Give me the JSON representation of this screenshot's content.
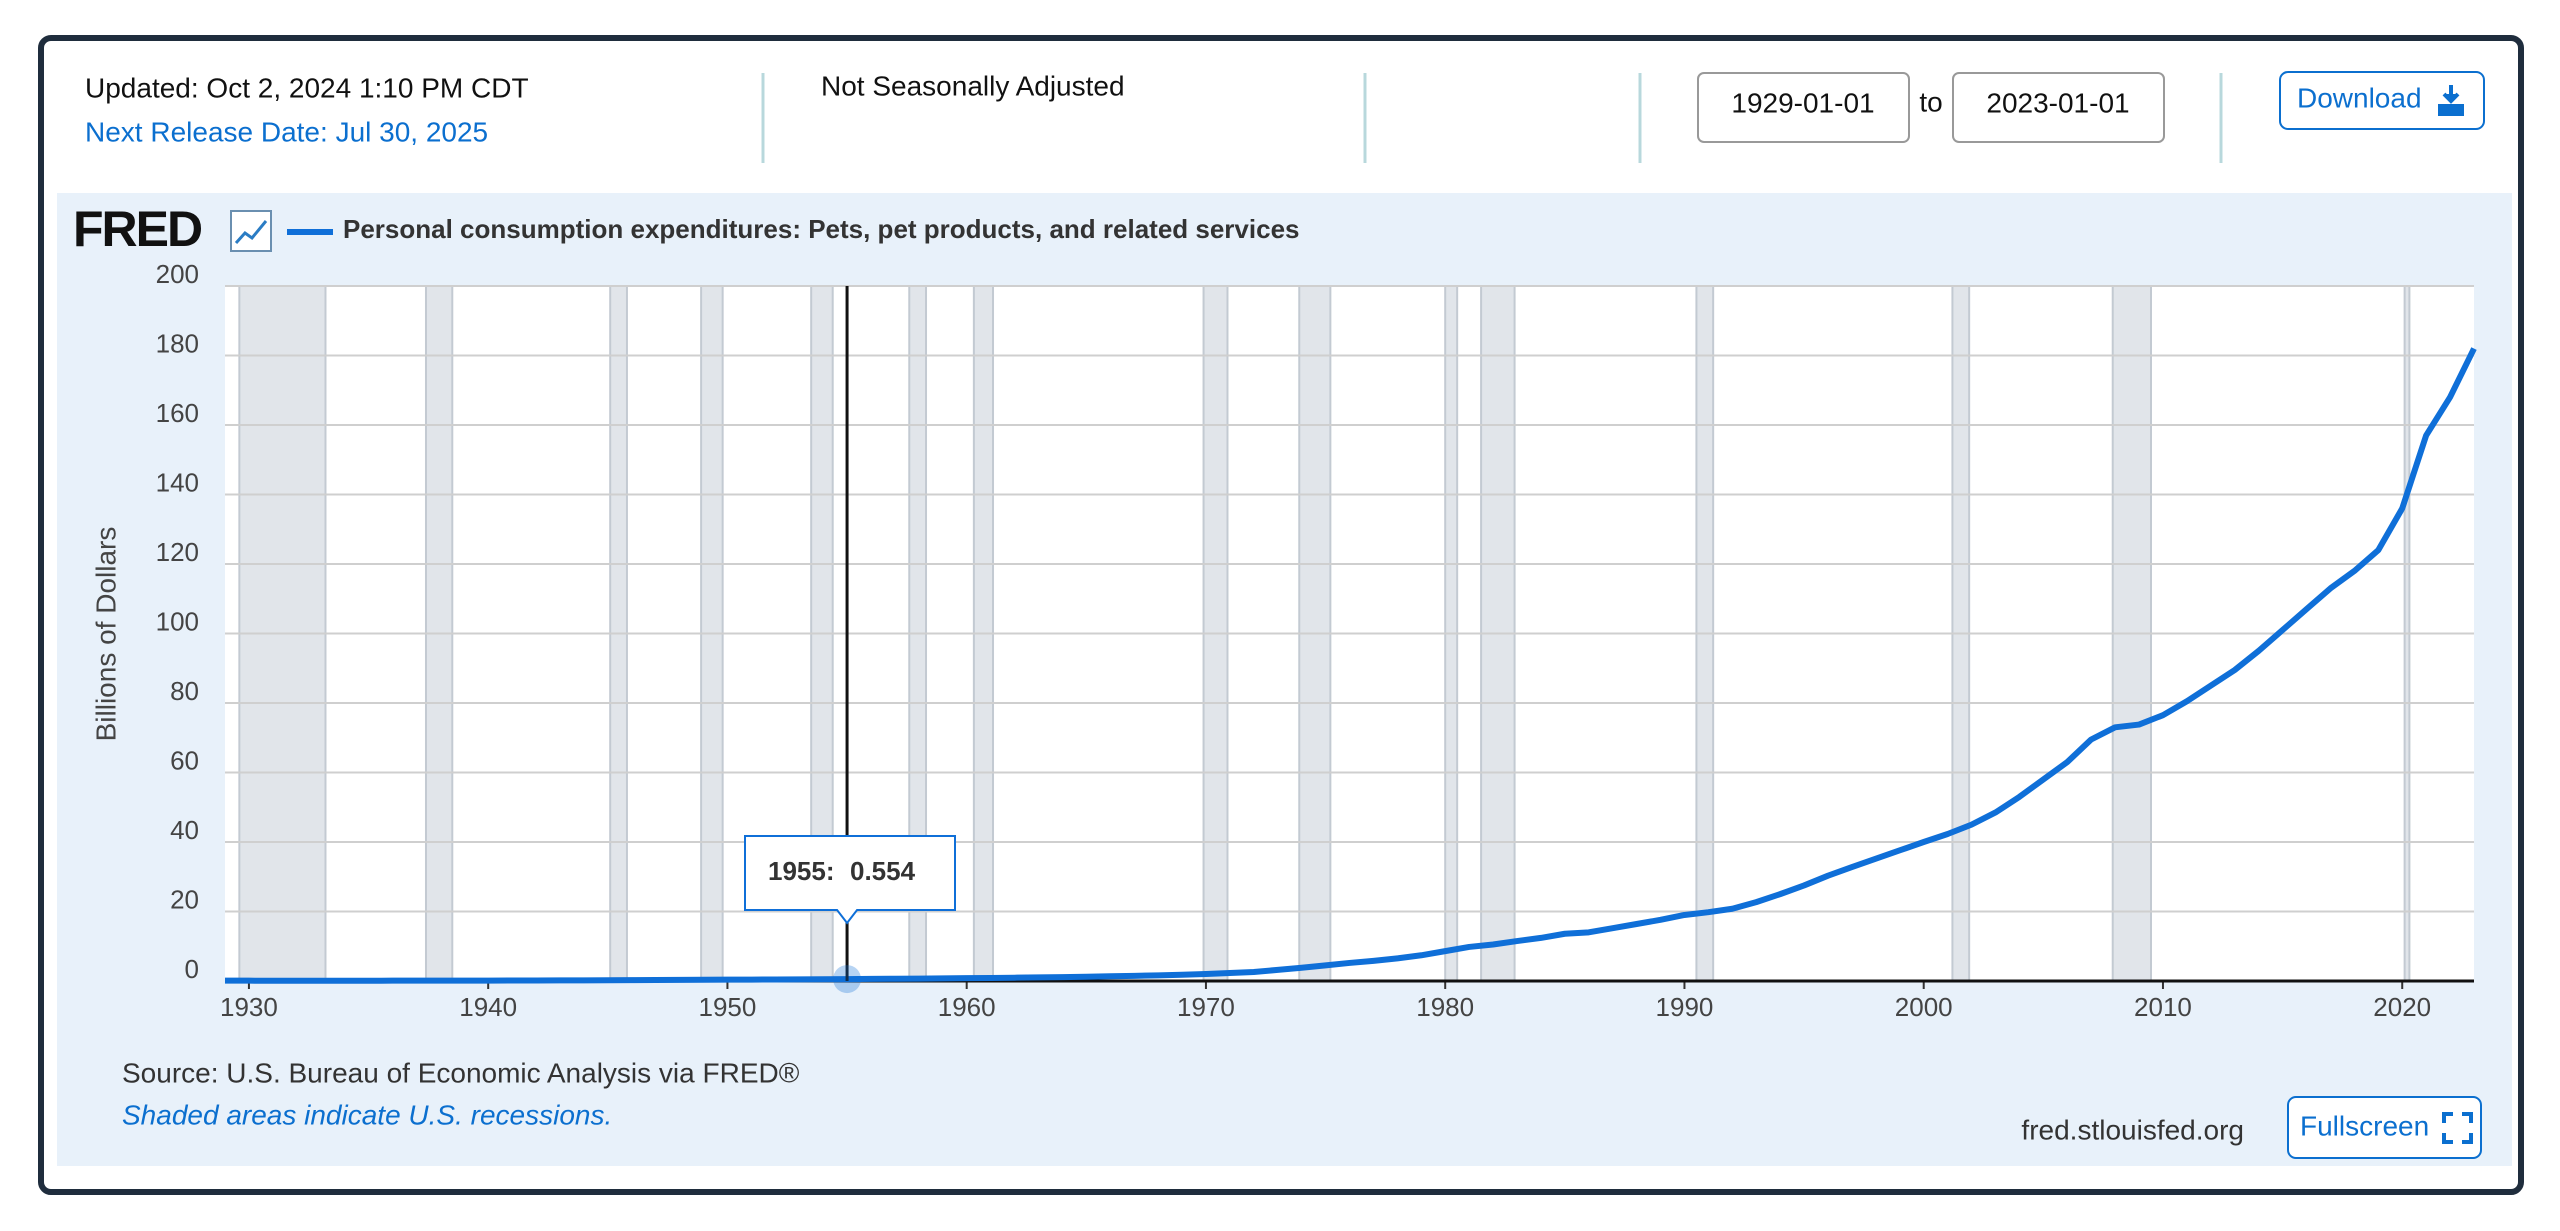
{
  "header": {
    "updated": "Updated: Oct 2, 2024 1:10 PM CDT",
    "next_release": "Next Release Date: Jul 30, 2025",
    "adjustment": "Not Seasonally Adjusted",
    "start_date": "1929-01-01",
    "to": "to",
    "end_date": "2023-01-01",
    "download": "Download"
  },
  "logo": "FRED",
  "footer": {
    "source": "Source: U.S. Bureau of Economic Analysis via FRED®",
    "note": "Shaded areas indicate U.S. recessions.",
    "site": "fred.stlouisfed.org",
    "fullscreen": "Fullscreen"
  },
  "chart_data": {
    "type": "line",
    "ylabel": "Billions of Dollars",
    "x": [
      1929,
      1930,
      1931,
      1932,
      1933,
      1934,
      1935,
      1936,
      1937,
      1938,
      1939,
      1940,
      1941,
      1942,
      1943,
      1944,
      1945,
      1946,
      1947,
      1948,
      1949,
      1950,
      1951,
      1952,
      1953,
      1954,
      1955,
      1956,
      1957,
      1958,
      1959,
      1960,
      1961,
      1962,
      1963,
      1964,
      1965,
      1966,
      1967,
      1968,
      1969,
      1970,
      1971,
      1972,
      1973,
      1974,
      1975,
      1976,
      1977,
      1978,
      1979,
      1980,
      1981,
      1982,
      1983,
      1984,
      1985,
      1986,
      1987,
      1988,
      1989,
      1990,
      1991,
      1992,
      1993,
      1994,
      1995,
      1996,
      1997,
      1998,
      1999,
      2000,
      2001,
      2002,
      2003,
      2004,
      2005,
      2006,
      2007,
      2008,
      2009,
      2010,
      2011,
      2012,
      2013,
      2014,
      2015,
      2016,
      2017,
      2018,
      2019,
      2020,
      2021,
      2022,
      2023
    ],
    "series": [
      {
        "name": "Personal consumption expenditures: Pets, pet products, and related services",
        "color": "#0f6fd8",
        "values": [
          0.1,
          0.09,
          0.08,
          0.07,
          0.06,
          0.07,
          0.08,
          0.09,
          0.1,
          0.1,
          0.11,
          0.12,
          0.14,
          0.15,
          0.17,
          0.19,
          0.21,
          0.26,
          0.3,
          0.33,
          0.35,
          0.38,
          0.41,
          0.44,
          0.47,
          0.5,
          0.554,
          0.6,
          0.65,
          0.7,
          0.76,
          0.82,
          0.88,
          0.95,
          1.03,
          1.12,
          1.23,
          1.35,
          1.48,
          1.63,
          1.8,
          2.0,
          2.3,
          2.6,
          3.2,
          3.8,
          4.5,
          5.2,
          5.8,
          6.5,
          7.4,
          8.6,
          9.8,
          10.5,
          11.5,
          12.4,
          13.6,
          14.0,
          15.2,
          16.4,
          17.6,
          19.0,
          19.8,
          20.8,
          22.7,
          25.0,
          27.5,
          30.3,
          32.8,
          35.2,
          37.6,
          40.0,
          42.3,
          45.0,
          48.5,
          53.0,
          58.0,
          63.0,
          69.5,
          73.0,
          73.8,
          76.5,
          80.5,
          85.0,
          89.5,
          95.0,
          101.0,
          107.0,
          113.0,
          118.0,
          124.0,
          136.0,
          157.0,
          168.0,
          182.0
        ]
      }
    ],
    "xlim": [
      1929,
      2023
    ],
    "xticks": [
      1930,
      1940,
      1950,
      1960,
      1970,
      1980,
      1990,
      2000,
      2010,
      2020
    ],
    "ylim": [
      0,
      200
    ],
    "yticks": [
      0,
      20,
      40,
      60,
      80,
      100,
      120,
      140,
      160,
      180,
      200
    ],
    "grid": true,
    "recessions": [
      [
        1929.6,
        1933.2
      ],
      [
        1937.4,
        1938.5
      ],
      [
        1945.1,
        1945.8
      ],
      [
        1948.9,
        1949.8
      ],
      [
        1953.5,
        1954.4
      ],
      [
        1957.6,
        1958.3
      ],
      [
        1960.3,
        1961.1
      ],
      [
        1969.9,
        1970.9
      ],
      [
        1973.9,
        1975.2
      ],
      [
        1980.0,
        1980.5
      ],
      [
        1981.5,
        1982.9
      ],
      [
        1990.5,
        1991.2
      ],
      [
        2001.2,
        2001.9
      ],
      [
        2007.9,
        2009.5
      ],
      [
        2020.1,
        2020.3
      ]
    ],
    "tooltip": {
      "x": 1955,
      "label": "1955:",
      "value": "0.554"
    }
  }
}
